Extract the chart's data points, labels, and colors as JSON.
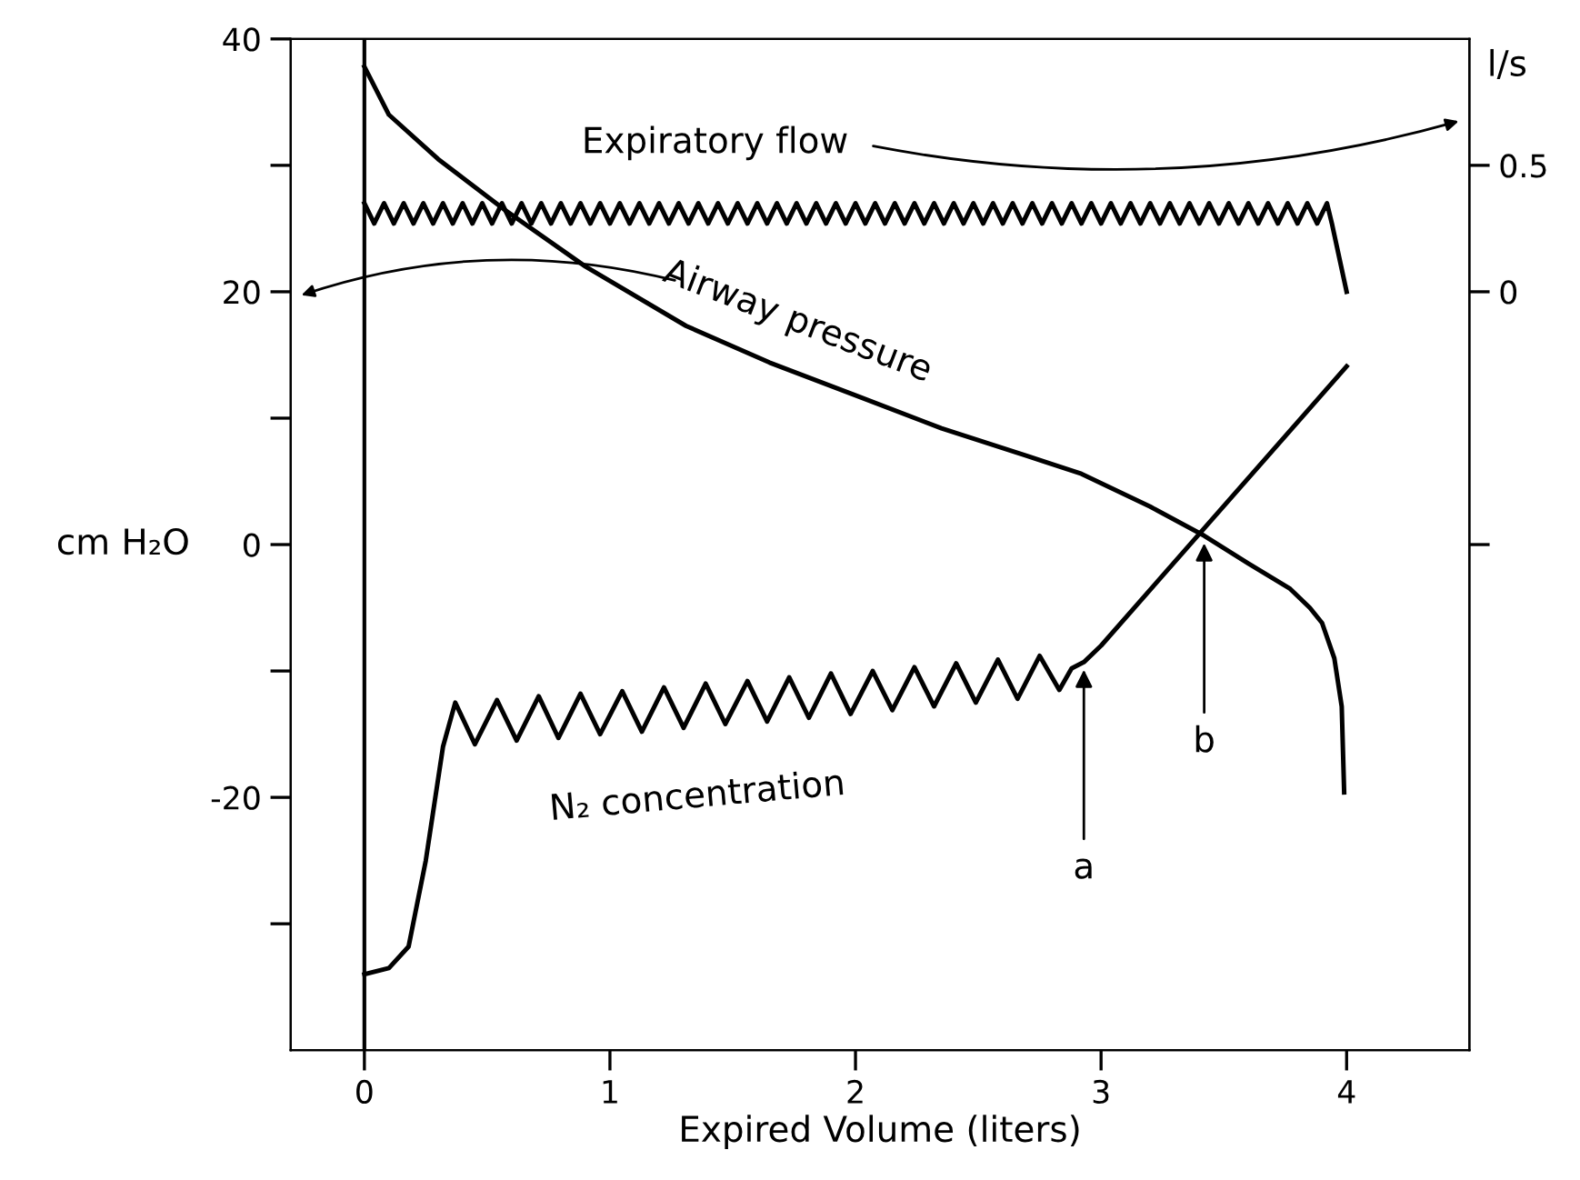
{
  "chart_data": {
    "type": "line",
    "xlabel": "Expired Volume (liters)",
    "ylabel": "cm H₂O",
    "y2label": "l/s",
    "xlim": [
      -0.3,
      4.5
    ],
    "xticks": [
      0,
      1,
      2,
      3,
      4
    ],
    "ylim": [
      -40,
      40
    ],
    "yticks": [
      40,
      {
        "value": 30,
        "label": null
      },
      20,
      {
        "value": 10,
        "label": null
      },
      0,
      {
        "value": -10,
        "label": null
      },
      -20,
      {
        "value": -30,
        "label": null
      }
    ],
    "y2lim": [
      -3,
      1
    ],
    "y2ticks": [
      0.5,
      0,
      {
        "value": -1,
        "label": null
      }
    ],
    "grid": false,
    "legend": false,
    "marker": "none",
    "line_style": "solid",
    "ref_lines": [
      {
        "axis": "x",
        "value": 0,
        "color": "#000000"
      }
    ],
    "annotations": [
      {
        "text": "a",
        "x": 2.93,
        "y": -9.3
      },
      {
        "text": "b",
        "x": 3.42,
        "y": 0.7
      }
    ],
    "series": [
      {
        "name": "Airway pressure",
        "color": "#000000",
        "x": [
          0,
          0.1,
          0.3,
          0.57,
          0.9,
          1.31,
          1.65,
          2.0,
          2.35,
          2.7,
          2.92,
          3.2,
          3.42,
          3.6,
          3.77,
          3.85,
          3.9,
          3.95,
          3.98,
          3.99
        ],
        "values": [
          37.8,
          34,
          30.5,
          26.5,
          22,
          17.3,
          14.4,
          11.8,
          9.2,
          7,
          5.6,
          3,
          0.7,
          -1.5,
          -3.5,
          -5,
          -6.2,
          -9,
          -12.8,
          -19.6
        ]
      },
      {
        "name": "Expiratory flow",
        "color": "#000000",
        "axis": "y2",
        "x": [
          0,
          0.04,
          0.08,
          0.12,
          0.16,
          0.2,
          0.24,
          0.28,
          0.32,
          0.36,
          0.4,
          0.44,
          0.48,
          0.52,
          0.56,
          0.6,
          0.64,
          0.68,
          0.72,
          0.76,
          0.8,
          0.84,
          0.88,
          0.92,
          0.96,
          1.0,
          1.04,
          1.08,
          1.12,
          1.16,
          1.2,
          1.24,
          1.28,
          1.32,
          1.36,
          1.4,
          1.44,
          1.48,
          1.52,
          1.56,
          1.6,
          1.64,
          1.68,
          1.72,
          1.76,
          1.8,
          1.84,
          1.88,
          1.92,
          1.96,
          2.0,
          2.04,
          2.08,
          2.12,
          2.16,
          2.2,
          2.24,
          2.28,
          2.32,
          2.36,
          2.4,
          2.44,
          2.48,
          2.52,
          2.56,
          2.6,
          2.64,
          2.68,
          2.72,
          2.76,
          2.8,
          2.84,
          2.88,
          2.92,
          2.96,
          3.0,
          3.04,
          3.08,
          3.12,
          3.16,
          3.2,
          3.24,
          3.28,
          3.32,
          3.36,
          3.4,
          3.44,
          3.48,
          3.52,
          3.56,
          3.6,
          3.64,
          3.68,
          3.72,
          3.76,
          3.8,
          3.84,
          3.88,
          3.92,
          3.94,
          4.0
        ],
        "values": [
          0.35,
          0.27,
          0.35,
          0.27,
          0.35,
          0.27,
          0.35,
          0.27,
          0.35,
          0.27,
          0.35,
          0.27,
          0.35,
          0.27,
          0.35,
          0.27,
          0.35,
          0.27,
          0.35,
          0.27,
          0.35,
          0.27,
          0.35,
          0.27,
          0.35,
          0.27,
          0.35,
          0.27,
          0.35,
          0.27,
          0.35,
          0.27,
          0.35,
          0.27,
          0.35,
          0.27,
          0.35,
          0.27,
          0.35,
          0.27,
          0.35,
          0.27,
          0.35,
          0.27,
          0.35,
          0.27,
          0.35,
          0.27,
          0.35,
          0.27,
          0.35,
          0.27,
          0.35,
          0.27,
          0.35,
          0.27,
          0.35,
          0.27,
          0.35,
          0.27,
          0.35,
          0.27,
          0.35,
          0.27,
          0.35,
          0.27,
          0.35,
          0.27,
          0.35,
          0.27,
          0.35,
          0.27,
          0.35,
          0.27,
          0.35,
          0.27,
          0.35,
          0.27,
          0.35,
          0.27,
          0.35,
          0.27,
          0.35,
          0.27,
          0.35,
          0.27,
          0.35,
          0.27,
          0.35,
          0.27,
          0.35,
          0.27,
          0.35,
          0.27,
          0.35,
          0.27,
          0.35,
          0.27,
          0.35,
          0.27,
          0
        ]
      },
      {
        "name": "N₂ concentration",
        "color": "#000000",
        "x": [
          0,
          0.1,
          0.18,
          0.25,
          0.32,
          0.37,
          0.45,
          0.54,
          0.62,
          0.71,
          0.79,
          0.88,
          0.96,
          1.05,
          1.13,
          1.22,
          1.3,
          1.39,
          1.47,
          1.56,
          1.64,
          1.73,
          1.81,
          1.9,
          1.98,
          2.07,
          2.15,
          2.24,
          2.32,
          2.41,
          2.49,
          2.58,
          2.66,
          2.75,
          2.83,
          2.88,
          2.93,
          3.0,
          4.0
        ],
        "values": [
          -34,
          -33.5,
          -31.8,
          -25,
          -16,
          -12.5,
          -15.8,
          -12.3,
          -15.5,
          -12.0,
          -15.3,
          -11.8,
          -15.0,
          -11.6,
          -14.8,
          -11.3,
          -14.5,
          -11.0,
          -14.2,
          -10.8,
          -14.0,
          -10.5,
          -13.7,
          -10.2,
          -13.4,
          -10.0,
          -13.1,
          -9.7,
          -12.8,
          -9.4,
          -12.5,
          -9.1,
          -12.2,
          -8.8,
          -11.5,
          -9.8,
          -9.3,
          -8.0,
          14.1
        ]
      }
    ]
  }
}
